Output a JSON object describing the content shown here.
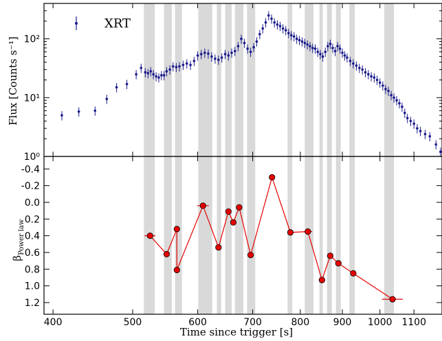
{
  "chart_data": [
    {
      "type": "scatter",
      "panel": "top",
      "legend": "XRT",
      "legend_placement": "top-left",
      "ylabel": "Flux [Counts s⁻¹]",
      "yscale": "log",
      "ylim": [
        1,
        400
      ],
      "xscale": "log",
      "xlim": [
        390,
        1190
      ],
      "ytick_labels": [
        "10⁰",
        "10¹",
        "10²"
      ],
      "ytick_values": [
        1,
        10,
        100
      ],
      "series_color": "#1a1a8c",
      "x": [
        410,
        430,
        450,
        465,
        478,
        492,
        505,
        512,
        518,
        522,
        526,
        530,
        534,
        538,
        542,
        546,
        550,
        555,
        560,
        565,
        570,
        576,
        582,
        588,
        594,
        600,
        606,
        612,
        618,
        624,
        630,
        636,
        642,
        648,
        654,
        660,
        666,
        672,
        678,
        684,
        690,
        696,
        702,
        708,
        714,
        720,
        726,
        732,
        738,
        744,
        750,
        756,
        762,
        768,
        774,
        780,
        786,
        792,
        798,
        804,
        810,
        816,
        822,
        828,
        834,
        840,
        846,
        852,
        858,
        864,
        870,
        876,
        882,
        888,
        894,
        900,
        906,
        912,
        920,
        928,
        936,
        944,
        952,
        960,
        968,
        976,
        984,
        992,
        1000,
        1008,
        1016,
        1024,
        1032,
        1040,
        1048,
        1056,
        1064,
        1072,
        1080,
        1090,
        1100,
        1110,
        1120,
        1135,
        1150,
        1170,
        1185
      ],
      "y": [
        5,
        5.8,
        6,
        9.5,
        15,
        17,
        25,
        32,
        27,
        26,
        28,
        25,
        23,
        22,
        24,
        24,
        28,
        30,
        34,
        33,
        34,
        36,
        38,
        36,
        42,
        52,
        55,
        58,
        56,
        50,
        46,
        44,
        48,
        55,
        52,
        58,
        62,
        75,
        100,
        85,
        68,
        60,
        72,
        90,
        120,
        150,
        190,
        250,
        220,
        190,
        175,
        165,
        150,
        140,
        125,
        115,
        110,
        100,
        95,
        90,
        85,
        80,
        75,
        70,
        68,
        60,
        55,
        50,
        60,
        75,
        82,
        70,
        62,
        75,
        68,
        58,
        52,
        48,
        42,
        38,
        35,
        32,
        30,
        27,
        25,
        23,
        22,
        20,
        18,
        16,
        14,
        13,
        11,
        10,
        9,
        8,
        7,
        5.5,
        4.5,
        4,
        3.6,
        3,
        2.7,
        2.4,
        2.2,
        1.6,
        1.2
      ]
    },
    {
      "type": "line",
      "panel": "bottom",
      "xlabel": "Time since trigger [s]",
      "ylabel": "β Power law",
      "ylabel_main": "β",
      "ylabel_sub": "Power law",
      "xscale": "log",
      "xlim": [
        390,
        1190
      ],
      "ylim": [
        1.34,
        -0.55
      ],
      "y_inverted": true,
      "xtick_values": [
        400,
        500,
        600,
        700,
        800,
        900,
        1000,
        1100
      ],
      "xtick_labels": [
        "400",
        "500",
        "600",
        "700",
        "800",
        "900",
        "1000",
        "1100"
      ],
      "ytick_values": [
        -0.4,
        -0.2,
        0.0,
        0.2,
        0.4,
        0.6,
        0.8,
        1.0,
        1.2
      ],
      "ytick_labels": [
        "-0.4",
        "-0.2",
        "0.0",
        "0.2",
        "0.4",
        "0.6",
        "0.8",
        "1.0",
        "1.2"
      ],
      "marker_color": "#e60000",
      "line_color": "#e60000",
      "x": [
        525,
        550,
        566,
        566,
        609,
        636,
        654,
        663,
        674,
        696,
        739,
        778,
        817,
        850,
        870,
        890,
        928,
        1036
      ],
      "y": [
        0.4,
        0.62,
        0.32,
        0.81,
        0.04,
        0.54,
        0.11,
        0.24,
        0.06,
        0.63,
        -0.3,
        0.36,
        0.35,
        0.93,
        0.64,
        0.73,
        0.85,
        1.16
      ],
      "xerr": [
        [
          8,
          8
        ],
        [
          0,
          0
        ],
        [
          0,
          0
        ],
        [
          0,
          0
        ],
        [
          10,
          10
        ],
        [
          0,
          0
        ],
        [
          0,
          0
        ],
        [
          0,
          0
        ],
        [
          0,
          0
        ],
        [
          0,
          0
        ],
        [
          0,
          0
        ],
        [
          0,
          0
        ],
        [
          10,
          10
        ],
        [
          0,
          0
        ],
        [
          0,
          0
        ],
        [
          0,
          0
        ],
        [
          0,
          0
        ],
        [
          30,
          30
        ]
      ],
      "shaded_intervals": [
        [
          516,
          532
        ],
        [
          546,
          558
        ],
        [
          563,
          574
        ],
        [
          601,
          625
        ],
        [
          633,
          641
        ],
        [
          648,
          660
        ],
        [
          666,
          682
        ],
        [
          689,
          705
        ],
        [
          772,
          782
        ],
        [
          810,
          830
        ],
        [
          844,
          852
        ],
        [
          862,
          874
        ],
        [
          884,
          896
        ],
        [
          918,
          932
        ],
        [
          1012,
          1040
        ]
      ]
    }
  ]
}
